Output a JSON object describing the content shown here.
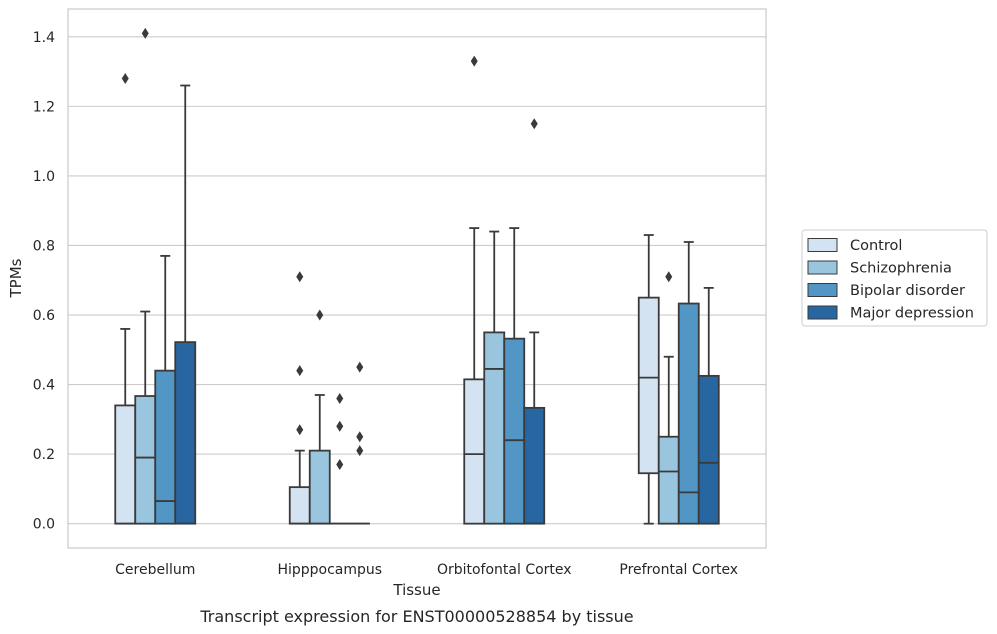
{
  "caption": "Transcript expression for ENST00000528854 by tissue",
  "chart_data": {
    "type": "box",
    "xlabel": "Tissue",
    "ylabel": "TPMs",
    "ylim": [
      -0.07,
      1.48
    ],
    "yticks": [
      "0.0",
      "0.2",
      "0.4",
      "0.6",
      "0.8",
      "1.0",
      "1.2",
      "1.4"
    ],
    "grid": "horizontal",
    "legend_position": "right",
    "categories": [
      "Cerebellum",
      "Hipppocampus",
      "Orbitofontal Cortex",
      "Prefrontal Cortex"
    ],
    "series": [
      {
        "name": "Control",
        "color": "#d3e3f1",
        "boxes": [
          {
            "whislo": 0,
            "q1": 0,
            "med": 0,
            "q3": 0.34,
            "whishi": 0.56,
            "fliers": [
              1.28
            ]
          },
          {
            "whislo": 0,
            "q1": 0,
            "med": 0,
            "q3": 0.105,
            "whishi": 0.21,
            "fliers": [
              0.27,
              0.44,
              0.71
            ]
          },
          {
            "whislo": 0,
            "q1": 0,
            "med": 0.2,
            "q3": 0.415,
            "whishi": 0.85,
            "fliers": [
              1.33
            ]
          },
          {
            "whislo": 0,
            "q1": 0.145,
            "med": 0.42,
            "q3": 0.65,
            "whishi": 0.83,
            "fliers": []
          }
        ]
      },
      {
        "name": "Schizophrenia",
        "color": "#9ac5df",
        "boxes": [
          {
            "whislo": 0,
            "q1": 0,
            "med": 0.19,
            "q3": 0.367,
            "whishi": 0.61,
            "fliers": [
              1.41
            ]
          },
          {
            "whislo": 0,
            "q1": 0,
            "med": 0,
            "q3": 0.21,
            "whishi": 0.37,
            "fliers": [
              0.6
            ]
          },
          {
            "whislo": 0,
            "q1": 0,
            "med": 0.445,
            "q3": 0.55,
            "whishi": 0.84,
            "fliers": []
          },
          {
            "whislo": 0,
            "q1": 0,
            "med": 0.15,
            "q3": 0.25,
            "whishi": 0.48,
            "fliers": [
              0.71
            ]
          }
        ]
      },
      {
        "name": "Bipolar disorder",
        "color": "#5296c6",
        "boxes": [
          {
            "whislo": 0,
            "q1": 0,
            "med": 0.065,
            "q3": 0.44,
            "whishi": 0.77,
            "fliers": []
          },
          {
            "whislo": 0,
            "q1": 0,
            "med": 0,
            "q3": 0,
            "whishi": 0,
            "fliers": [
              0.17,
              0.28,
              0.36
            ]
          },
          {
            "whislo": 0,
            "q1": 0,
            "med": 0.24,
            "q3": 0.532,
            "whishi": 0.85,
            "fliers": []
          },
          {
            "whislo": 0,
            "q1": 0,
            "med": 0.09,
            "q3": 0.633,
            "whishi": 0.81,
            "fliers": []
          }
        ]
      },
      {
        "name": "Major depression",
        "color": "#2866a2",
        "boxes": [
          {
            "whislo": 0,
            "q1": 0,
            "med": 0,
            "q3": 0.522,
            "whishi": 1.26,
            "fliers": []
          },
          {
            "whislo": 0,
            "q1": 0,
            "med": 0,
            "q3": 0,
            "whishi": 0,
            "fliers": [
              0.21,
              0.25,
              0.45
            ]
          },
          {
            "whislo": 0,
            "q1": 0,
            "med": 0,
            "q3": 0.333,
            "whishi": 0.55,
            "fliers": [
              1.15
            ]
          },
          {
            "whislo": 0,
            "q1": 0,
            "med": 0.175,
            "q3": 0.425,
            "whishi": 0.678,
            "fliers": []
          }
        ]
      }
    ]
  }
}
